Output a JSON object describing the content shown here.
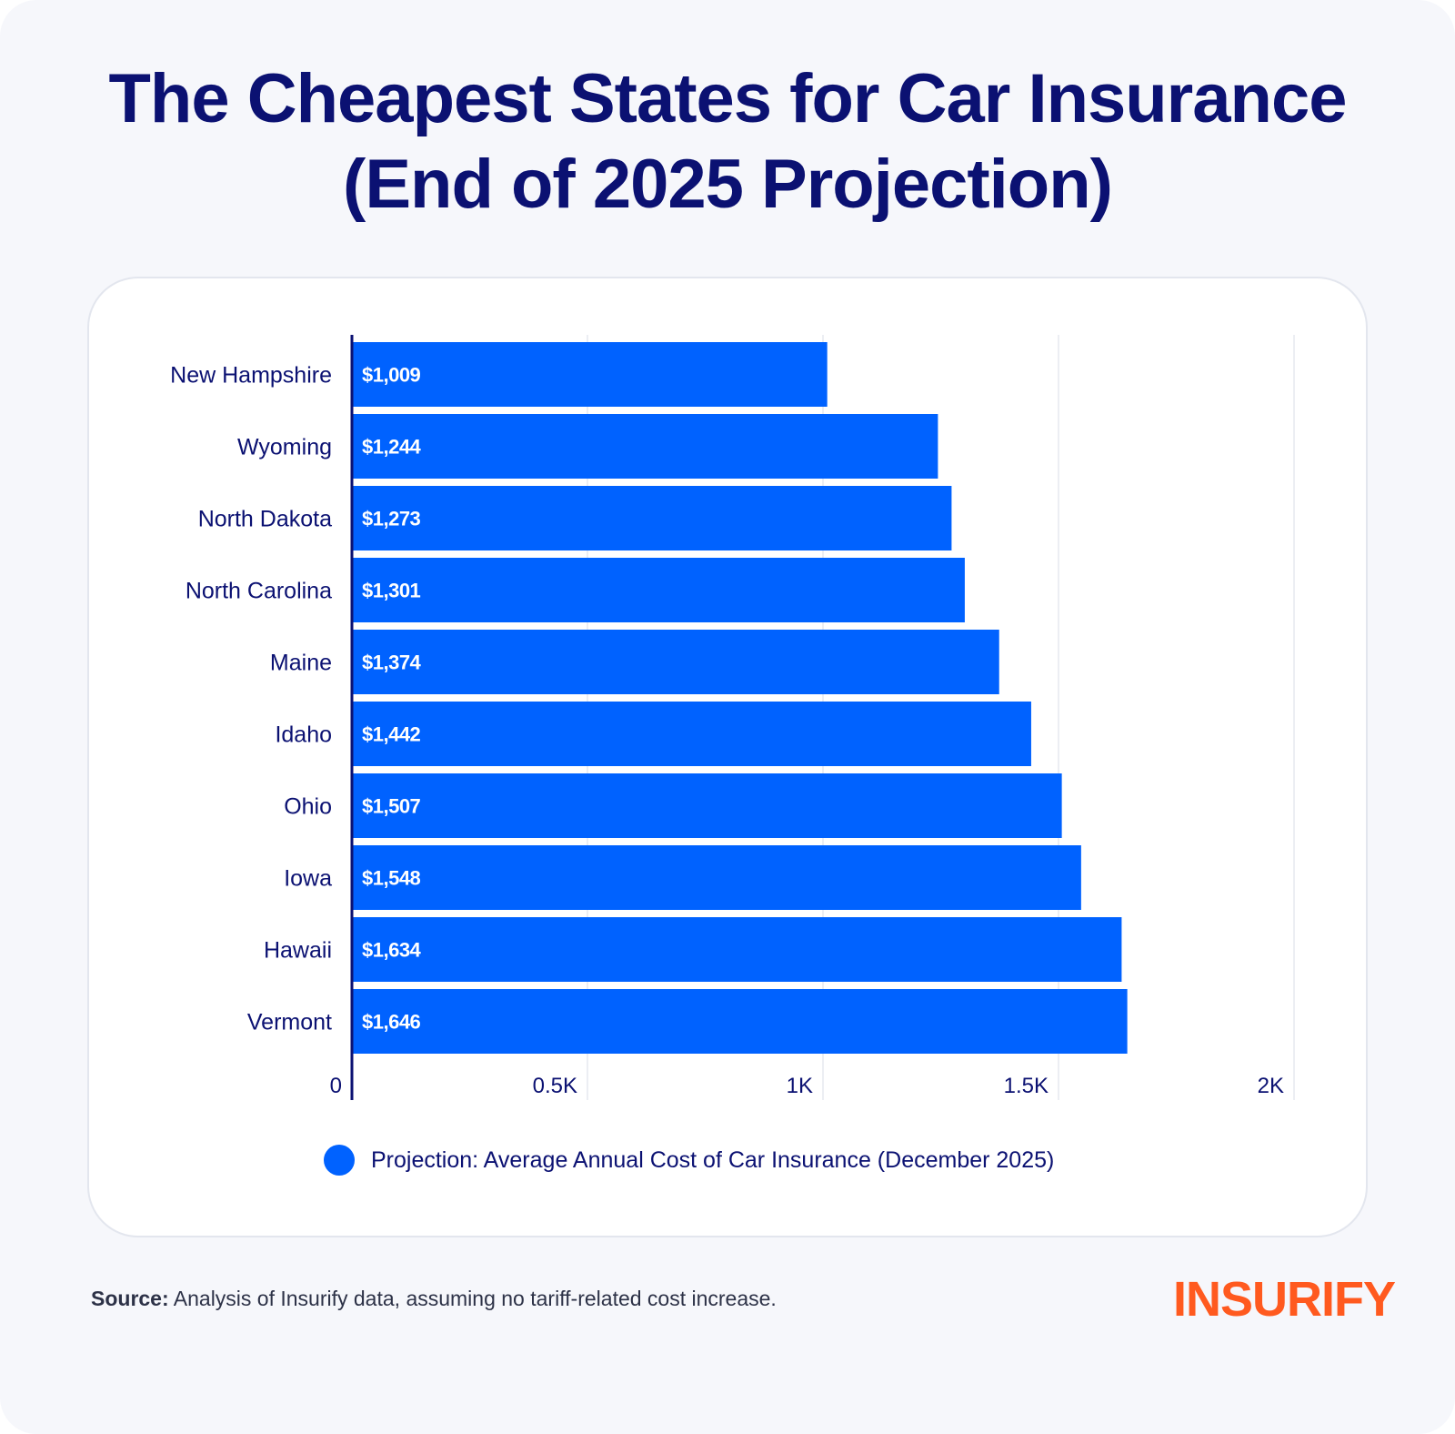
{
  "page": {
    "title_line1": "The Cheapest States for Car Insurance",
    "title_line2": "(End of 2025 Projection)",
    "source_label": "Source:",
    "source_text": "Analysis of Insurify data, assuming no tariff-related cost increase.",
    "logo_text": "INSURIFY"
  },
  "colors": {
    "bar": "#0062ff",
    "title": "#0b1172",
    "axis": "#0b1172",
    "grid": "#e6e8ef",
    "logo": "#ff5a1f"
  },
  "chart_data": {
    "type": "bar",
    "orientation": "horizontal",
    "categories": [
      "New Hampshire",
      "Wyoming",
      "North Dakota",
      "North Carolina",
      "Maine",
      "Idaho",
      "Ohio",
      "Iowa",
      "Hawaii",
      "Vermont"
    ],
    "series": [
      {
        "name": "Projection: Average Annual Cost of Car Insurance (December 2025)",
        "values": [
          1009,
          1244,
          1273,
          1301,
          1374,
          1442,
          1507,
          1548,
          1634,
          1646
        ],
        "data_labels": [
          "$1,009",
          "$1,244",
          "$1,273",
          "$1,301",
          "$1,374",
          "$1,442",
          "$1,507",
          "$1,548",
          "$1,634",
          "$1,646"
        ]
      }
    ],
    "xlim": [
      0,
      2000
    ],
    "x_ticks": [
      0,
      500,
      1000,
      1500,
      2000
    ],
    "x_tick_labels": [
      "0",
      "0.5K",
      "1K",
      "1.5K",
      "2K"
    ],
    "grid": true,
    "legend_position": "bottom"
  }
}
